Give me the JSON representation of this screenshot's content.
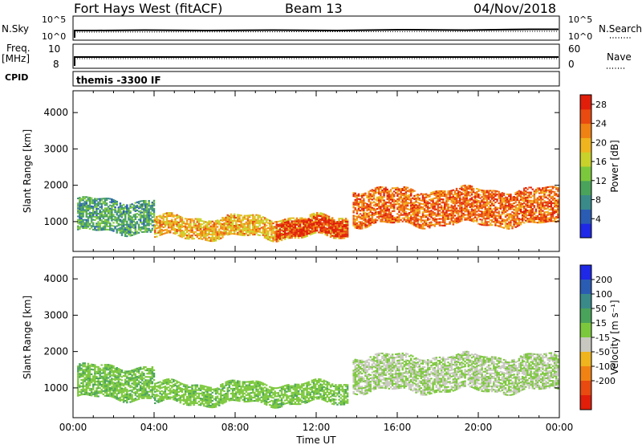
{
  "header": {
    "station": "Fort Hays West (fitACF)",
    "beam": "Beam 13",
    "date": "04/Nov/2018"
  },
  "strips": {
    "nsky_label": "N.Sky",
    "freq_label_line1": "Freq.",
    "freq_label_line2": "[MHz]",
    "cpid_label": "CPID",
    "nsky_ticks": [
      "10^5",
      "10^0"
    ],
    "freq_ticks": [
      "10",
      "8"
    ],
    "nsearch_label": "N.Search",
    "nsearch_ticks": [
      "10^5",
      "10^0"
    ],
    "nave_label": "Nave",
    "nave_ticks": [
      "60",
      "0"
    ],
    "cpid_text": "themis -3300 IF"
  },
  "x_axis": {
    "label": "Time UT",
    "ticks": [
      "00:00",
      "04:00",
      "08:00",
      "12:00",
      "16:00",
      "20:00",
      "00:00"
    ]
  },
  "chart_data": [
    {
      "type": "heatmap",
      "panel": "power",
      "ylabel": "Slant Range [km]",
      "xlabel": "Time UT",
      "ylim": [
        180,
        4600
      ],
      "yticks": [
        1000,
        2000,
        3000,
        4000
      ],
      "xlim": [
        0,
        24
      ],
      "colorbar": {
        "label": "Power [dB]",
        "ticks": [
          4,
          8,
          12,
          16,
          20,
          24,
          28
        ],
        "colors": [
          "#1e28e6",
          "#2b5cb3",
          "#3a8a8a",
          "#4aa35a",
          "#7cc83c",
          "#c8d22a",
          "#f0b41e",
          "#f08214",
          "#e84a10",
          "#e01e0a"
        ],
        "range": [
          0,
          30
        ]
      },
      "regions": [
        {
          "t": [
            0.2,
            4.0
          ],
          "r": [
            700,
            1600
          ],
          "value": 10,
          "note": "scatter band"
        },
        {
          "t": [
            4.0,
            13.6
          ],
          "r": [
            550,
            1100
          ],
          "value": 20,
          "note": "scatter band"
        },
        {
          "t": [
            10.0,
            13.6
          ],
          "r": [
            600,
            1050
          ],
          "value": 28,
          "note": "strong scatter"
        },
        {
          "t": [
            13.8,
            24.0
          ],
          "r": [
            900,
            1850
          ],
          "value": 24,
          "note": "strong scatter band"
        }
      ]
    },
    {
      "type": "heatmap",
      "panel": "velocity",
      "ylabel": "Slant Range [km]",
      "xlabel": "Time UT",
      "ylim": [
        180,
        4600
      ],
      "yticks": [
        1000,
        2000,
        3000,
        4000
      ],
      "xlim": [
        0,
        24
      ],
      "colorbar": {
        "label": "Velocity [m s⁻¹]",
        "ticks": [
          200,
          100,
          50,
          15,
          -15,
          -50,
          -100,
          -200
        ],
        "colors": [
          "#1e28e6",
          "#2b5cb3",
          "#3a8a8a",
          "#4aa35a",
          "#7cc83c",
          "#c8c8c0",
          "#f0b41e",
          "#f08214",
          "#e84a10",
          "#e01e0a"
        ],
        "range": [
          -250,
          250
        ]
      },
      "regions": [
        {
          "t": [
            0.2,
            4.0
          ],
          "r": [
            700,
            1600
          ],
          "value": 40
        },
        {
          "t": [
            4.0,
            13.6
          ],
          "r": [
            550,
            1100
          ],
          "value": 30
        },
        {
          "t": [
            13.8,
            24.0
          ],
          "r": [
            900,
            1850
          ],
          "value": 0
        }
      ]
    }
  ]
}
